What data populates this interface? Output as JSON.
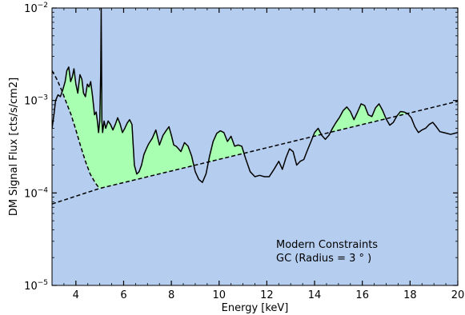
{
  "chart_data": {
    "type": "line",
    "title": "",
    "xlabel": "Energy [keV]",
    "ylabel": "DM Signal Flux [cts/s/cm2]",
    "xlim": [
      3,
      20
    ],
    "ylim": [
      1e-05,
      0.01
    ],
    "yscale": "log",
    "grid": false,
    "legend": "none",
    "x_ticks": [
      {
        "value": 4,
        "label": "4"
      },
      {
        "value": 6,
        "label": "6"
      },
      {
        "value": 8,
        "label": "8"
      },
      {
        "value": 10,
        "label": "10"
      },
      {
        "value": 12,
        "label": "12"
      },
      {
        "value": 14,
        "label": "14"
      },
      {
        "value": 16,
        "label": "16"
      },
      {
        "value": 18,
        "label": "18"
      },
      {
        "value": 20,
        "label": "20"
      }
    ],
    "y_ticks": [
      {
        "value": 1e-05,
        "base": "10",
        "exp": "−5"
      },
      {
        "value": 0.0001,
        "base": "10",
        "exp": "−4"
      },
      {
        "value": 0.001,
        "base": "10",
        "exp": "−3"
      },
      {
        "value": 0.01,
        "base": "10",
        "exp": "−2"
      }
    ],
    "annotations": [
      "Modern Constraints",
      "GC (Radius = 3 ° )"
    ],
    "colors": {
      "background": "#b5cdef",
      "excess_fill": "#a8ffb2",
      "line": "#000000"
    },
    "series": [
      {
        "style": "solid",
        "x": [
          3.0,
          3.08,
          3.15,
          3.25,
          3.35,
          3.45,
          3.55,
          3.62,
          3.7,
          3.78,
          3.85,
          3.92,
          4.0,
          4.08,
          4.17,
          4.25,
          4.32,
          4.4,
          4.48,
          4.55,
          4.62,
          4.7,
          4.78,
          4.85,
          4.9,
          4.95,
          5.0,
          5.04,
          5.06,
          5.09,
          5.12,
          5.18,
          5.25,
          5.35,
          5.45,
          5.55,
          5.65,
          5.75,
          5.85,
          5.95,
          6.05,
          6.15,
          6.25,
          6.35,
          6.45,
          6.55,
          6.65,
          6.75,
          6.85,
          6.95,
          7.05,
          7.2,
          7.35,
          7.5,
          7.65,
          7.8,
          7.9,
          8.0,
          8.1,
          8.2,
          8.3,
          8.4,
          8.55,
          8.7,
          8.85,
          9.0,
          9.15,
          9.3,
          9.45,
          9.6,
          9.75,
          9.9,
          10.05,
          10.2,
          10.35,
          10.5,
          10.65,
          10.8,
          10.95,
          11.1,
          11.3,
          11.5,
          11.7,
          11.9,
          12.1,
          12.3,
          12.5,
          12.65,
          12.8,
          12.95,
          13.1,
          13.25,
          13.4,
          13.55,
          13.7,
          13.85,
          14.0,
          14.15,
          14.3,
          14.45,
          14.6,
          14.75,
          14.9,
          15.05,
          15.2,
          15.35,
          15.5,
          15.65,
          15.8,
          15.95,
          16.1,
          16.25,
          16.4,
          16.55,
          16.7,
          16.85,
          17.0,
          17.15,
          17.3,
          17.45,
          17.6,
          17.75,
          17.9,
          18.05,
          18.2,
          18.35,
          18.5,
          18.65,
          18.8,
          18.95,
          19.1,
          19.25,
          19.4,
          19.55,
          19.7,
          19.85,
          20.0
        ],
        "y": [
          0.0005,
          0.0007,
          0.001,
          0.00115,
          0.0011,
          0.0013,
          0.0016,
          0.0021,
          0.0023,
          0.0016,
          0.0018,
          0.0022,
          0.0015,
          0.0012,
          0.0019,
          0.0017,
          0.0012,
          0.0011,
          0.0015,
          0.0014,
          0.0016,
          0.0011,
          0.0007,
          0.00075,
          0.0006,
          0.00045,
          0.0006,
          0.002,
          0.01,
          0.0006,
          0.00045,
          0.0006,
          0.0005,
          0.0006,
          0.00055,
          0.00048,
          0.00055,
          0.00065,
          0.00056,
          0.00045,
          0.0005,
          0.00057,
          0.00062,
          0.00055,
          0.0002,
          0.00016,
          0.00017,
          0.0002,
          0.00026,
          0.0003,
          0.00034,
          0.00039,
          0.00048,
          0.00033,
          0.00042,
          0.00048,
          0.00052,
          0.00042,
          0.00033,
          0.00032,
          0.0003,
          0.00028,
          0.00035,
          0.00032,
          0.00025,
          0.00017,
          0.00014,
          0.00013,
          0.00016,
          0.00025,
          0.00036,
          0.00044,
          0.00047,
          0.00045,
          0.00036,
          0.00041,
          0.00032,
          0.00033,
          0.00032,
          0.00024,
          0.00017,
          0.00015,
          0.000155,
          0.00015,
          0.00015,
          0.00018,
          0.00022,
          0.00018,
          0.00024,
          0.0003,
          0.00028,
          0.0002,
          0.00022,
          0.00023,
          0.00029,
          0.00036,
          0.00045,
          0.0005,
          0.00042,
          0.00038,
          0.00042,
          0.0005,
          0.00058,
          0.00066,
          0.00078,
          0.00085,
          0.00076,
          0.00062,
          0.00075,
          0.00092,
          0.00088,
          0.0007,
          0.00067,
          0.00083,
          0.00092,
          0.00078,
          0.00063,
          0.00054,
          0.00058,
          0.00068,
          0.00076,
          0.00075,
          0.00072,
          0.00065,
          0.00052,
          0.00045,
          0.00048,
          0.0005,
          0.00055,
          0.00058,
          0.00052,
          0.00046,
          0.00045,
          0.00044,
          0.00043,
          0.00044,
          0.00045
        ]
      },
      {
        "style": "dashed",
        "x": [
          3.0,
          3.2,
          3.4,
          3.6,
          3.8,
          4.0,
          4.2,
          4.4,
          4.6,
          4.8,
          4.95
        ],
        "y": [
          0.0021,
          0.0017,
          0.0013,
          0.00095,
          0.0007,
          0.00048,
          0.00032,
          0.00022,
          0.00016,
          0.00013,
          0.000115
        ]
      },
      {
        "style": "dashed",
        "x": [
          3.0,
          5.0,
          20.0
        ],
        "y": [
          7.6e-05,
          0.000112,
          0.00098
        ]
      }
    ]
  }
}
